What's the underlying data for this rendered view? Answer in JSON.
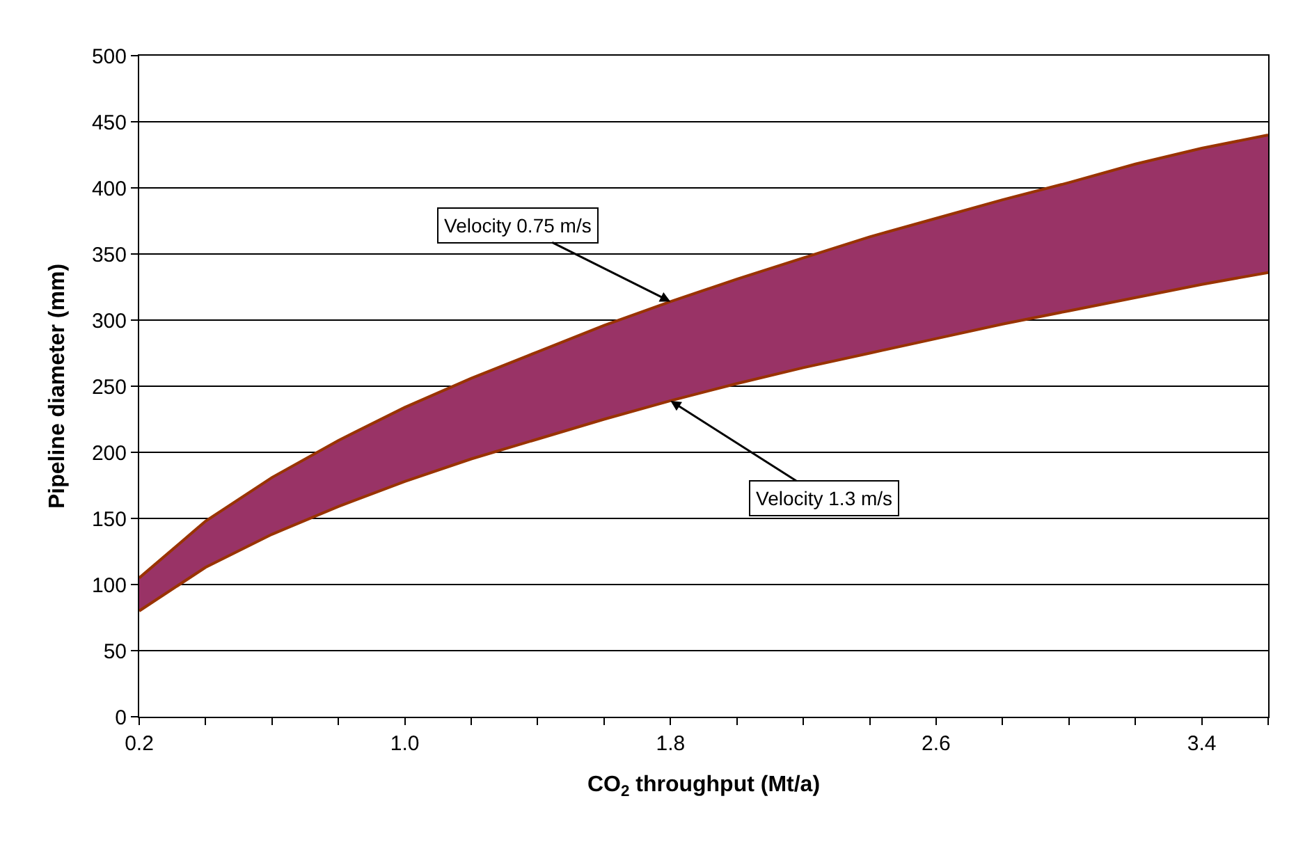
{
  "chart_data": {
    "type": "area",
    "xlabel": "CO$_{2}$ throughput (Mt/a)",
    "ylabel": "Pipeline diameter (mm)",
    "x": [
      0.2,
      0.4,
      0.6,
      0.8,
      1.0,
      1.2,
      1.4,
      1.6,
      1.8,
      2.0,
      2.2,
      2.4,
      2.6,
      2.8,
      3.0,
      3.2,
      3.4,
      3.6
    ],
    "series": [
      {
        "type": "line",
        "color": "#993300",
        "values": [
          80,
          113,
          138,
          159,
          178,
          195,
          210,
          225,
          239,
          252,
          264,
          275,
          286,
          297,
          307,
          317,
          327,
          336
        ]
      },
      {
        "type": "area",
        "color": "#993366",
        "values": [
          105,
          148,
          181,
          209,
          234,
          256,
          276,
          296,
          314,
          331,
          347,
          363,
          377,
          391,
          404,
          418,
          430,
          440
        ]
      }
    ],
    "xlim": [
      0.2,
      3.6
    ],
    "xticks": [
      0.2,
      {
        "value": 0.4,
        "label": null
      },
      {
        "value": 0.6,
        "label": null
      },
      {
        "value": 0.8,
        "label": null
      },
      {
        "value": 1.0,
        "label": "1.0"
      },
      {
        "value": 1.2,
        "label": null
      },
      {
        "value": 1.4,
        "label": null
      },
      {
        "value": 1.6,
        "label": null
      },
      1.8,
      {
        "value": 2.0,
        "label": null
      },
      {
        "value": 2.2,
        "label": null
      },
      {
        "value": 2.4,
        "label": null
      },
      2.6,
      {
        "value": 2.8,
        "label": null
      },
      {
        "value": 3.0,
        "label": null
      },
      {
        "value": 3.2,
        "label": null
      },
      3.4,
      {
        "value": 3.6,
        "label": null
      }
    ],
    "ylim": [
      0,
      500
    ],
    "yticks": [
      0,
      50,
      100,
      150,
      200,
      250,
      300,
      350,
      400,
      450,
      500
    ],
    "grid": "y",
    "marker": "none",
    "annotations": [
      {
        "text": "Velocity 0.75 m/s",
        "x": 1.8,
        "y": 314
      },
      {
        "text": "Velocity 1.3 m/s",
        "x": 1.8,
        "y": 239
      }
    ]
  }
}
